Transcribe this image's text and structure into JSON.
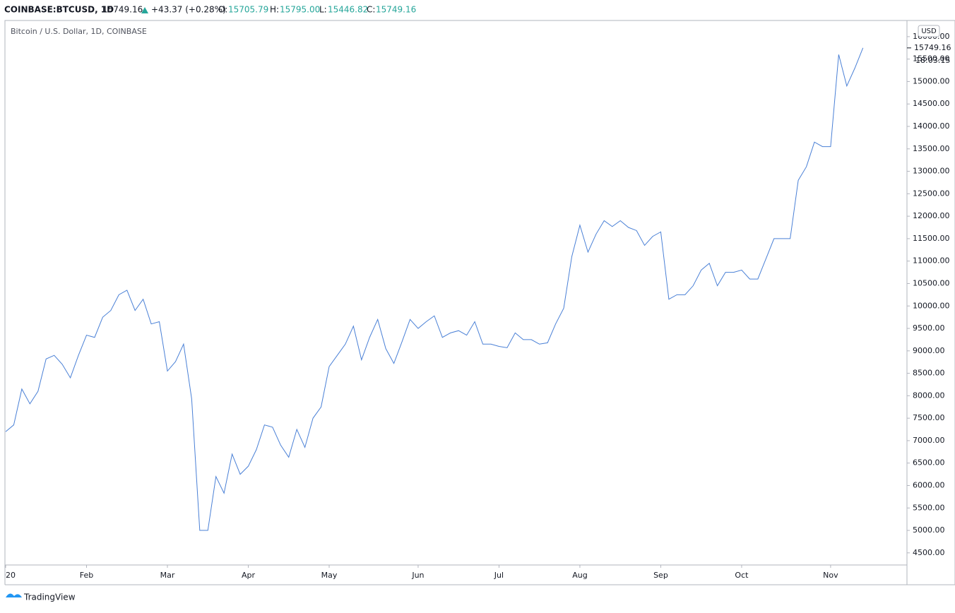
{
  "header": {
    "symbol": "COINBASE:BTCUSD, 1D",
    "last": "15749.16",
    "change": "+43.37 (+0.28%)",
    "open_label": "O:",
    "open": "15705.79",
    "high_label": "H:",
    "high": "15795.00",
    "low_label": "L:",
    "low": "15446.82",
    "close_label": "C:",
    "close": "15749.16"
  },
  "chart_data": {
    "type": "line",
    "title": "Bitcoin / U.S. Dollar, 1D, COINBASE",
    "color": "#4a80d6",
    "categories": [
      "2020",
      null,
      null,
      null,
      null,
      null,
      null,
      null,
      null,
      null,
      "Feb",
      null,
      null,
      null,
      null,
      null,
      null,
      null,
      null,
      null,
      "Mar",
      null,
      null,
      null,
      null,
      null,
      null,
      null,
      null,
      null,
      "Apr",
      null,
      null,
      null,
      null,
      null,
      null,
      null,
      null,
      null,
      "May",
      null,
      null,
      null,
      null,
      null,
      null,
      null,
      null,
      null,
      null,
      "Jun",
      null,
      null,
      null,
      null,
      null,
      null,
      null,
      null,
      null,
      "Jul",
      null,
      null,
      null,
      null,
      null,
      null,
      null,
      null,
      null,
      "Aug",
      null,
      null,
      null,
      null,
      null,
      null,
      null,
      null,
      null,
      "Sep",
      null,
      null,
      null,
      null,
      null,
      null,
      null,
      null,
      null,
      "Oct",
      null,
      null,
      null,
      null,
      null,
      null,
      null,
      null,
      null,
      null,
      "Nov",
      null,
      null,
      null,
      null
    ],
    "values": [
      7200,
      7350,
      8150,
      7820,
      8100,
      8820,
      8900,
      8700,
      8400,
      8900,
      9350,
      9300,
      9750,
      9900,
      10250,
      10350,
      9900,
      10150,
      9600,
      9650,
      8550,
      8760,
      9150,
      7930,
      5000,
      5000,
      6200,
      5830,
      6700,
      6250,
      6430,
      6800,
      7350,
      7300,
      6900,
      6630,
      7250,
      6850,
      7500,
      7750,
      8650,
      8900,
      9150,
      9550,
      8800,
      9300,
      9700,
      9050,
      8720,
      9200,
      9700,
      9500,
      9650,
      9780,
      9300,
      9400,
      9450,
      9350,
      9650,
      9150,
      9150,
      9100,
      9070,
      9400,
      9250,
      9250,
      9150,
      9180,
      9600,
      9950,
      11100,
      11800,
      11200,
      11600,
      11900,
      11770,
      11900,
      11750,
      11680,
      11350,
      11550,
      11650,
      10150,
      10250,
      10250,
      10450,
      10800,
      10950,
      10450,
      10750,
      10750,
      10800,
      10600,
      10600,
      11050,
      11500,
      11500,
      11500,
      12800,
      13100,
      13650,
      13550,
      13550,
      15600,
      14900,
      15300,
      15749.16
    ],
    "ylim": [
      4230,
      16360
    ],
    "yticks": [
      {
        "value": 4500,
        "label": "4500.00"
      },
      {
        "value": 5000,
        "label": "5000.00"
      },
      {
        "value": 5500,
        "label": "5500.00"
      },
      {
        "value": 6000,
        "label": "6000.00"
      },
      {
        "value": 6500,
        "label": "6500.00"
      },
      {
        "value": 7000,
        "label": "7000.00"
      },
      {
        "value": 7500,
        "label": "7500.00"
      },
      {
        "value": 8000,
        "label": "8000.00"
      },
      {
        "value": 8500,
        "label": "8500.00"
      },
      {
        "value": 9000,
        "label": "9000.00"
      },
      {
        "value": 9500,
        "label": "9500.00"
      },
      {
        "value": 10000,
        "label": "10000.00"
      },
      {
        "value": 10500,
        "label": "10500.00"
      },
      {
        "value": 11000,
        "label": "11000.00"
      },
      {
        "value": 11500,
        "label": "11500.00"
      },
      {
        "value": 12000,
        "label": "12000.00"
      },
      {
        "value": 12500,
        "label": "12500.00"
      },
      {
        "value": 13000,
        "label": "13000.00"
      },
      {
        "value": 13500,
        "label": "13500.00"
      },
      {
        "value": 14000,
        "label": "14000.00"
      },
      {
        "value": 14500,
        "label": "14500.00"
      },
      {
        "value": 15000,
        "label": "15000.00"
      },
      {
        "value": 15500,
        "label": "15500.00"
      },
      {
        "value": 16000,
        "label": "16000.00"
      }
    ],
    "last_price": {
      "value": 15749.16,
      "label": "15749.16"
    },
    "countdown": "18:03:15",
    "currency": "USD"
  },
  "footer": {
    "brand": "TradingView"
  }
}
